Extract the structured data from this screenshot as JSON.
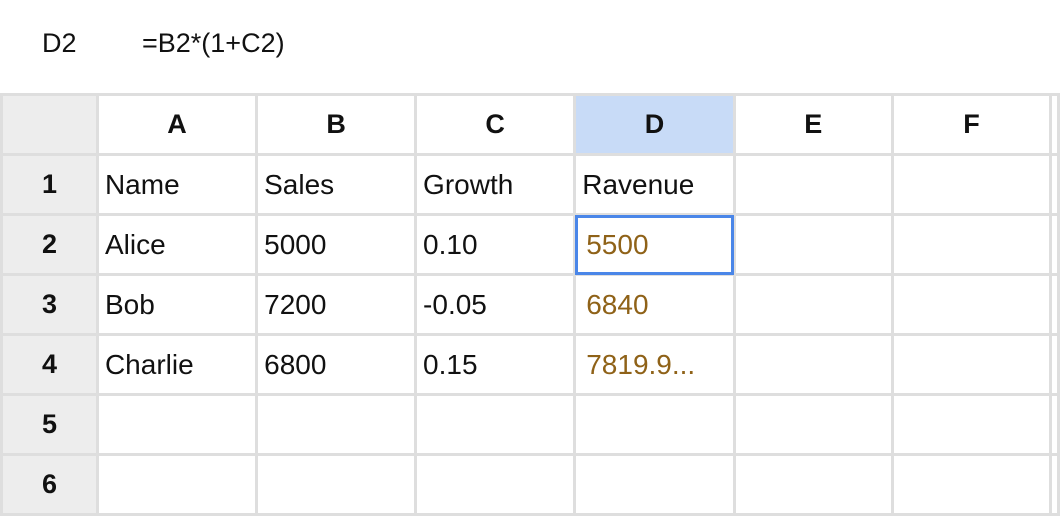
{
  "formula_bar": {
    "cell_reference": "D2",
    "formula": "=B2*(1+C2)"
  },
  "sheet": {
    "columns": [
      "A",
      "B",
      "C",
      "D",
      "E",
      "F"
    ],
    "selected_column": "D",
    "active_cell": "D2",
    "rows": [
      {
        "label": "1",
        "cells": [
          "Name",
          "Sales",
          "Growth",
          "Ravenue",
          "",
          ""
        ]
      },
      {
        "label": "2",
        "cells": [
          "Alice",
          "5000",
          "0.10",
          "5500",
          "",
          ""
        ]
      },
      {
        "label": "3",
        "cells": [
          "Bob",
          "7200",
          "-0.05",
          "6840",
          "",
          ""
        ]
      },
      {
        "label": "4",
        "cells": [
          "Charlie",
          "6800",
          "0.15",
          "7819.9...",
          "",
          ""
        ]
      },
      {
        "label": "5",
        "cells": [
          "",
          "",
          "",
          "",
          "",
          ""
        ]
      },
      {
        "label": "6",
        "cells": [
          "",
          "",
          "",
          "",
          "",
          ""
        ]
      }
    ]
  },
  "colors": {
    "selected_header": "#c8dbf7",
    "active_border": "#4a86e8",
    "formula_result_text": "#8f6218",
    "header_background": "#ededed",
    "grid_line": "#dedede"
  }
}
